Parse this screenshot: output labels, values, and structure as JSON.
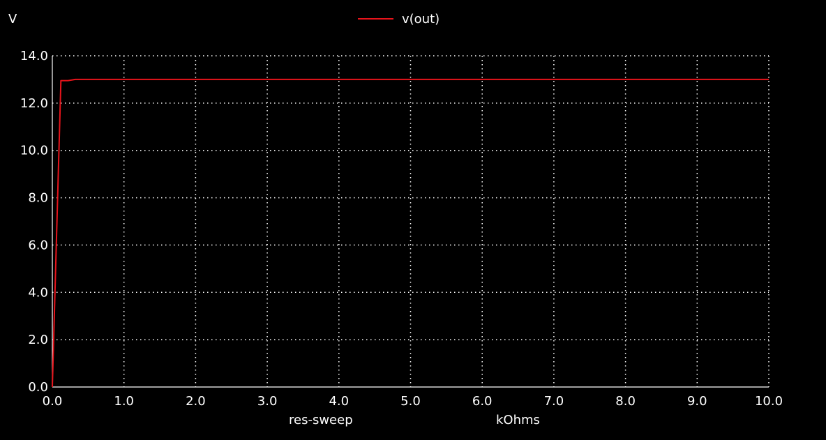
{
  "chart_data": {
    "type": "line",
    "title": "",
    "ylabel": "V",
    "xlabel": "res-sweep",
    "xunit": "kOhms",
    "xlim": [
      0.0,
      10.0
    ],
    "ylim": [
      0.0,
      14.0
    ],
    "grid": true,
    "legend_position": "top-center",
    "x_ticks": [
      0.0,
      1.0,
      2.0,
      3.0,
      4.0,
      5.0,
      6.0,
      7.0,
      8.0,
      9.0,
      10.0
    ],
    "y_ticks": [
      0.0,
      2.0,
      4.0,
      6.0,
      8.0,
      10.0,
      12.0,
      14.0
    ],
    "x_tick_labels": [
      "0.0",
      "1.0",
      "2.0",
      "3.0",
      "4.0",
      "5.0",
      "6.0",
      "7.0",
      "8.0",
      "9.0",
      "10.0"
    ],
    "y_tick_labels": [
      "0.0",
      "2.0",
      "4.0",
      "6.0",
      "8.0",
      "10.0",
      "12.0",
      "14.0"
    ],
    "series": [
      {
        "name": "v(out)",
        "color": "#e8141b",
        "x": [
          0.0,
          0.12,
          0.22,
          0.32,
          10.0
        ],
        "y": [
          0.0,
          12.95,
          12.95,
          13.0,
          13.0
        ]
      }
    ]
  },
  "colors": {
    "background": "#000000",
    "foreground": "#ffffff"
  }
}
